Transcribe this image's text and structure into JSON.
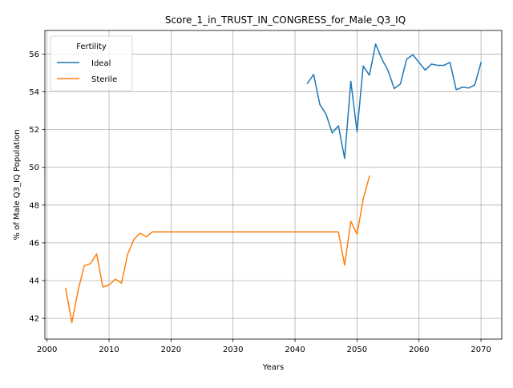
{
  "chart_data": {
    "type": "line",
    "title": "Score_1_in_TRUST_IN_CONGRESS_for_Male_Q3_IQ",
    "xlabel": "Years",
    "ylabel": "% of Male Q3_IQ Population",
    "xlim": [
      1999.65,
      2073.35
    ],
    "ylim": [
      40.9,
      57.25
    ],
    "xticks": [
      2000,
      2010,
      2020,
      2030,
      2040,
      2050,
      2060,
      2070
    ],
    "yticks": [
      42,
      44,
      46,
      48,
      50,
      52,
      54,
      56
    ],
    "grid": true,
    "legend": {
      "title": "Fertility",
      "position": "top-left"
    },
    "series": [
      {
        "name": "Ideal",
        "color": "#1f77b4",
        "x": [
          2042,
          2043,
          2044,
          2045,
          2046,
          2047,
          2048,
          2049,
          2050,
          2051,
          2052,
          2053,
          2054,
          2055,
          2056,
          2057,
          2058,
          2059,
          2060,
          2061,
          2062,
          2063,
          2064,
          2065,
          2066,
          2067,
          2068,
          2069,
          2070
        ],
        "y": [
          54.45,
          54.92,
          53.33,
          52.82,
          51.82,
          52.2,
          50.47,
          54.56,
          51.88,
          55.37,
          54.88,
          56.53,
          55.74,
          55.13,
          54.17,
          54.42,
          55.73,
          55.96,
          55.56,
          55.15,
          55.47,
          55.4,
          55.4,
          55.56,
          54.11,
          54.25,
          54.2,
          54.37,
          55.56
        ]
      },
      {
        "name": "Sterile",
        "color": "#ff7f0e",
        "x": [
          2003,
          2004,
          2005,
          2006,
          2007,
          2008,
          2009,
          2010,
          2011,
          2012,
          2013,
          2014,
          2015,
          2016,
          2017,
          2018,
          2019,
          2020,
          2021,
          2022,
          2023,
          2024,
          2025,
          2026,
          2027,
          2028,
          2029,
          2030,
          2031,
          2032,
          2033,
          2034,
          2035,
          2036,
          2037,
          2038,
          2039,
          2040,
          2041,
          2042,
          2043,
          2044,
          2045,
          2046,
          2047,
          2048,
          2049,
          2050,
          2051,
          2052
        ],
        "y": [
          43.59,
          41.77,
          43.47,
          44.79,
          44.9,
          45.41,
          43.66,
          43.76,
          44.08,
          43.86,
          45.39,
          46.18,
          46.51,
          46.32,
          46.58,
          46.58,
          46.58,
          46.58,
          46.58,
          46.58,
          46.58,
          46.58,
          46.58,
          46.58,
          46.58,
          46.58,
          46.58,
          46.58,
          46.58,
          46.58,
          46.58,
          46.58,
          46.58,
          46.58,
          46.58,
          46.58,
          46.58,
          46.58,
          46.58,
          46.58,
          46.58,
          46.58,
          46.58,
          46.58,
          46.58,
          44.82,
          47.14,
          46.45,
          48.32,
          49.53
        ]
      }
    ]
  }
}
